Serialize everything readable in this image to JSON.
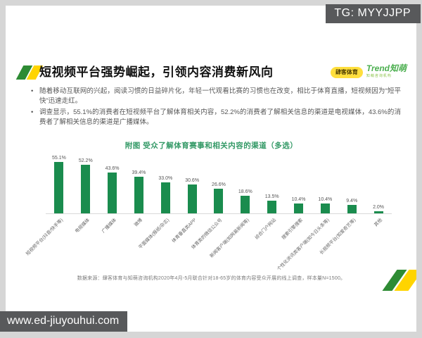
{
  "overlay": {
    "tg_label": "TG: MYYJJPP",
    "watermark": "www.ed-jiuyouhui.com"
  },
  "header": {
    "title": "短视频平台强势崛起，引领内容消费新风向",
    "logos": [
      {
        "name": "siku-sports",
        "text": "肆客体育"
      },
      {
        "name": "trend-zhimeng",
        "text": "Trend知萌",
        "subtext": "知萌咨询机构"
      }
    ]
  },
  "body": {
    "bullets": [
      "随着移动互联网的兴起，阅读习惯的日益碎片化，年轻一代观看比赛的习惯也在改变，相比于体育直播，短视频因为“短平快”迅速走红。",
      "调查显示，55.1%的消费者在短视频平台了解体育相关内容，52.2%的消费者了解相关信息的渠道是电视媒体，43.6%的消费者了解相关信息的渠道是广播媒体。"
    ]
  },
  "chart_data": {
    "type": "bar",
    "title": "附图 受众了解体育赛事和相关内容的渠道（多选）",
    "categories": [
      "短视频平台(抖音/快手等)",
      "电视媒体",
      "广播媒体",
      "微博",
      "平面媒体(报纸/杂志)",
      "体育垂直类APP",
      "体育类的微信公众号",
      "新闻客户端(如网易新闻等)",
      "综合门户网站",
      "搜索引擎搜索",
      "个性化资讯类客户端(如今日头条等)",
      "长视频平台(如爱奇艺等)",
      "其他"
    ],
    "values": [
      55.1,
      52.2,
      43.6,
      39.4,
      33.0,
      30.6,
      26.6,
      18.6,
      13.5,
      10.4,
      10.4,
      9.4,
      2.0
    ],
    "value_labels": [
      "55.1%",
      "52.2%",
      "43.6%",
      "39.4%",
      "33.0%",
      "30.6%",
      "26.6%",
      "18.6%",
      "13.5%",
      "10.4%",
      "10.4%",
      "9.4%",
      "2.0%"
    ],
    "xlabel": "",
    "ylabel": "",
    "ylim": [
      0,
      60
    ],
    "grid": false,
    "legend": "none",
    "bar_color": "#1a8c4e",
    "label_rotation_deg": -45
  },
  "footer": {
    "source": "数据来源：肆客体育与知萌咨询机构2020年4月-5月联合针对18-65岁的体育内容受众开展的线上调查，样本量N=1500。"
  },
  "colors": {
    "bar_green": "#1a8c4e",
    "chart_title_green": "#339966",
    "decor_green": "#2e8b34",
    "decor_yellow": "#ffd400",
    "badge_gray": "#58595b",
    "frame_gray": "#d6d6d6"
  }
}
